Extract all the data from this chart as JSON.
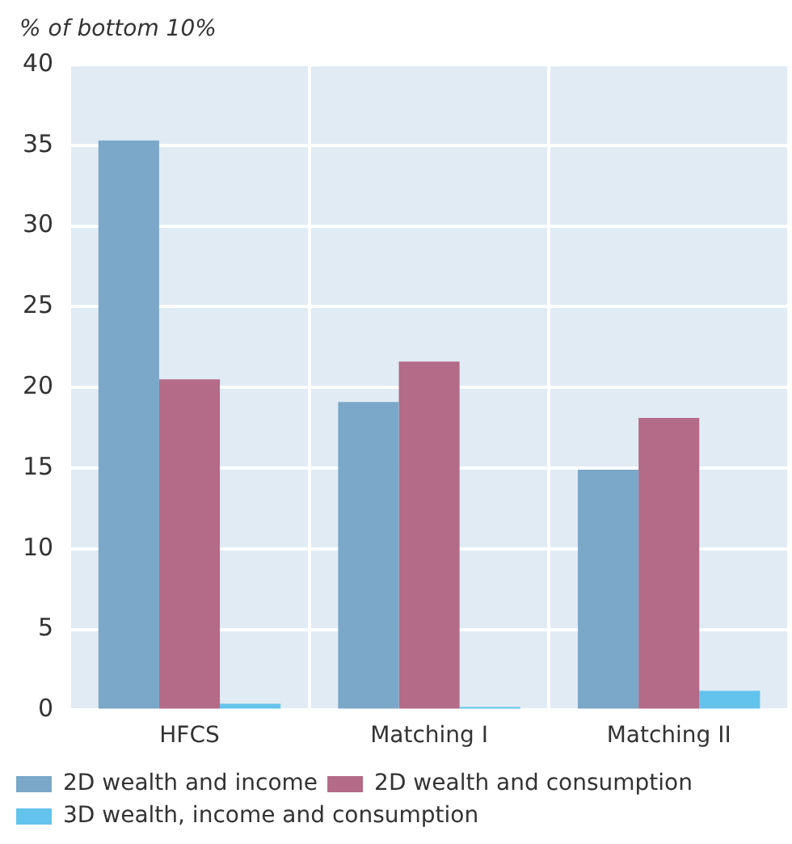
{
  "chart_data": {
    "type": "bar",
    "ylabel": "% of bottom 10%",
    "categories": [
      "HFCS",
      "Matching I",
      "Matching II"
    ],
    "series": [
      {
        "name": "2D wealth and income",
        "color": "#7ba7c9",
        "values": [
          35.3,
          19.1,
          14.9
        ]
      },
      {
        "name": "2D wealth and consumption",
        "color": "#b36b87",
        "values": [
          20.5,
          21.6,
          18.1
        ]
      },
      {
        "name": "3D wealth, income and consumption",
        "color": "#64c3ec",
        "values": [
          0.4,
          0.2,
          1.2
        ]
      }
    ],
    "ylim": [
      0,
      40
    ],
    "yticks": [
      0,
      5,
      10,
      15,
      20,
      25,
      30,
      35,
      40
    ],
    "grid": true,
    "legend": "bottom"
  }
}
